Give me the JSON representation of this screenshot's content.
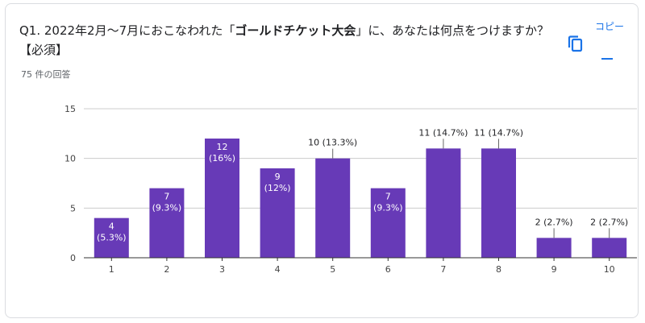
{
  "question": {
    "prefix": "Q1. 2022年2月～7月におこなわれた「",
    "bold": "ゴールドチケット大会",
    "suffix": "」に、あなたは何点をつけますか？【必須】"
  },
  "response_count": "75 件の回答",
  "copy": {
    "label": "コピー",
    "icon": "copy-icon"
  },
  "colors": {
    "bar": "#673ab7",
    "axis": "#333333",
    "grid": "#cccccc"
  },
  "chart_data": {
    "type": "bar",
    "title": "",
    "xlabel": "",
    "ylabel": "",
    "categories": [
      "1",
      "2",
      "3",
      "4",
      "5",
      "6",
      "7",
      "8",
      "9",
      "10"
    ],
    "values": [
      4,
      7,
      12,
      9,
      10,
      7,
      11,
      11,
      2,
      2
    ],
    "data_labels": [
      "4 (5.3%)",
      "7 (9.3%)",
      "12 (16%)",
      "9 (12%)",
      "10 (13.3%)",
      "7 (9.3%)",
      "11 (14.7%)",
      "11 (14.7%)",
      "2 (2.7%)",
      "2 (2.7%)"
    ],
    "label_inside": [
      true,
      true,
      true,
      true,
      false,
      true,
      false,
      false,
      false,
      false
    ],
    "ylim": [
      0,
      15
    ],
    "yticks": [
      0,
      5,
      10,
      15
    ],
    "grid": true,
    "legend": "none"
  }
}
